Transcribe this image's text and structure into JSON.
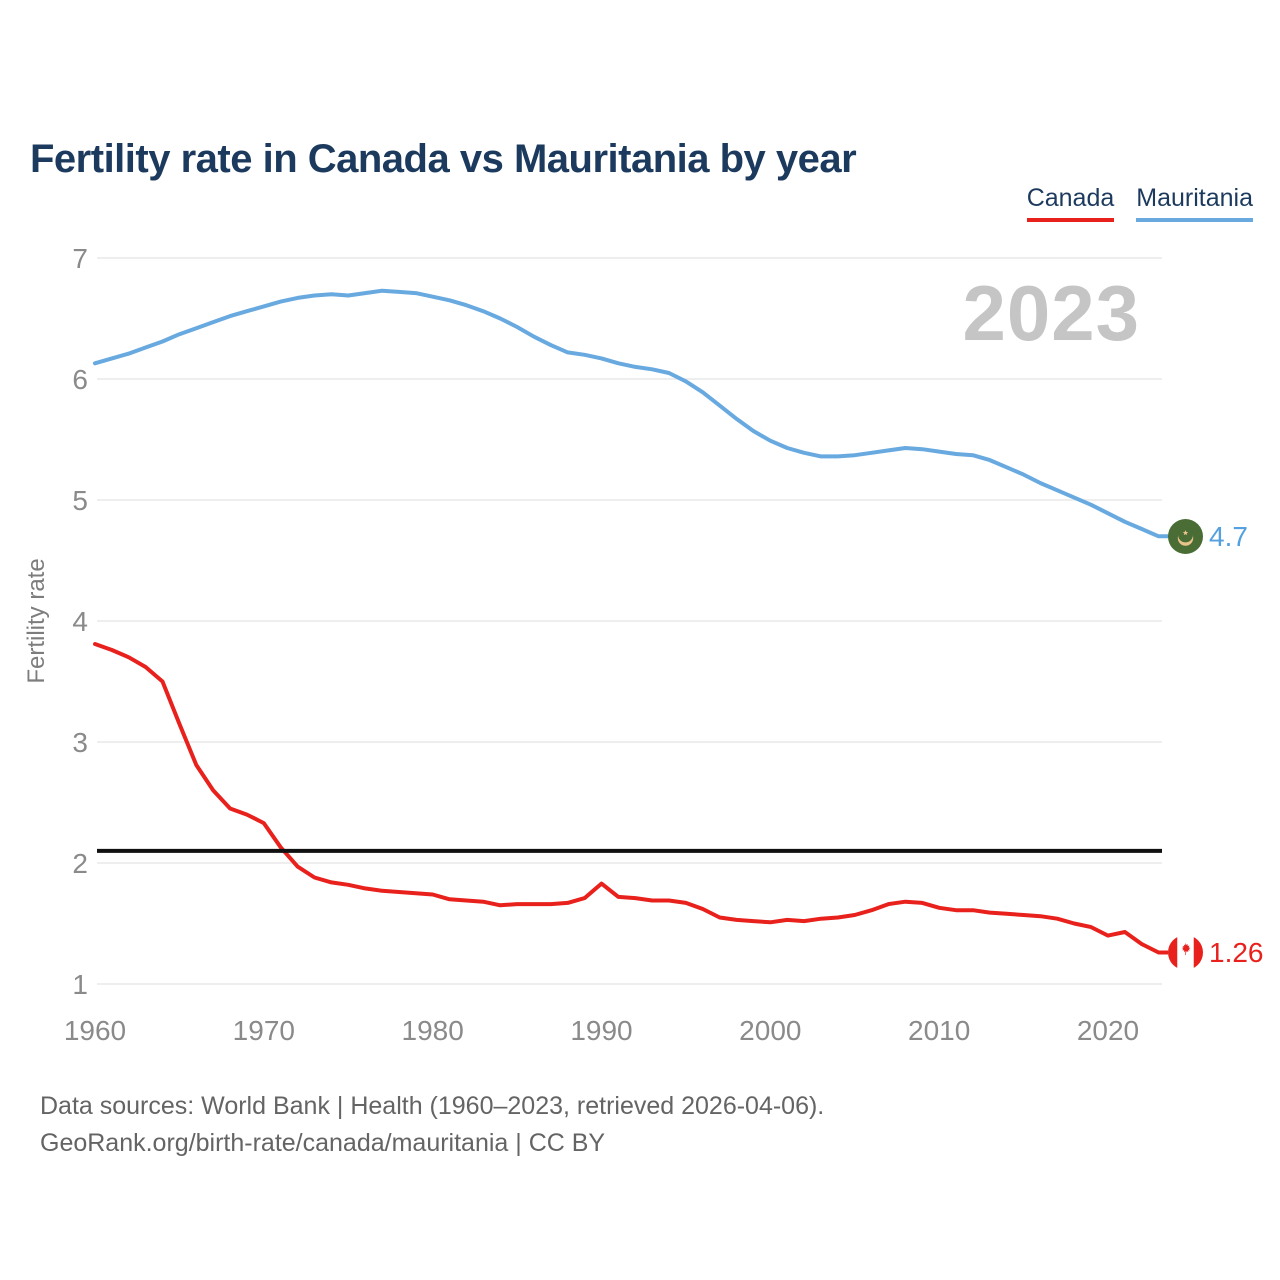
{
  "title": "Fertility rate in Canada vs Mauritania by year",
  "watermark": "2023",
  "legend": {
    "items": [
      {
        "label": "Canada",
        "color": "#e8211d"
      },
      {
        "label": "Mauritania",
        "color": "#68a9e0"
      }
    ]
  },
  "y_axis": {
    "label": "Fertility rate",
    "ticks": [
      1,
      2,
      3,
      4,
      5,
      6,
      7
    ]
  },
  "x_axis": {
    "ticks": [
      1960,
      1970,
      1980,
      1990,
      2000,
      2010,
      2020
    ]
  },
  "end_labels": {
    "mauritania": {
      "value": "4.7",
      "flag": "mauritania-flag"
    },
    "canada": {
      "value": "1.26",
      "flag": "canada-flag"
    }
  },
  "footer": {
    "line1": "Data sources: World Bank | Health (1960–2023, retrieved 2026-04-06).",
    "line2": "GeoRank.org/birth-rate/canada/mauritania | CC BY"
  },
  "chart_data": {
    "type": "line",
    "title": "Fertility rate in Canada vs Mauritania by year",
    "xlabel": "",
    "ylabel": "Fertility rate",
    "x_start": 1960,
    "x_end": 2023,
    "x_step": 1,
    "ylim": [
      1,
      7
    ],
    "xlim": [
      1960,
      2023
    ],
    "grid": "horizontal",
    "legend_position": "top-right",
    "replacement_line": 2.1,
    "colors": {
      "canada": "#e8211d",
      "mauritania": "#68a9e0",
      "reference": "#111111"
    },
    "series": [
      {
        "name": "Canada",
        "color": "#e8211d",
        "end_value": 1.26,
        "values": [
          3.81,
          3.76,
          3.7,
          3.62,
          3.5,
          3.15,
          2.81,
          2.6,
          2.45,
          2.4,
          2.33,
          2.13,
          1.97,
          1.88,
          1.84,
          1.82,
          1.79,
          1.77,
          1.76,
          1.75,
          1.74,
          1.7,
          1.69,
          1.68,
          1.65,
          1.66,
          1.66,
          1.66,
          1.67,
          1.71,
          1.83,
          1.72,
          1.71,
          1.69,
          1.69,
          1.67,
          1.62,
          1.55,
          1.53,
          1.52,
          1.51,
          1.53,
          1.52,
          1.54,
          1.55,
          1.57,
          1.61,
          1.66,
          1.68,
          1.67,
          1.63,
          1.61,
          1.61,
          1.59,
          1.58,
          1.57,
          1.56,
          1.54,
          1.5,
          1.47,
          1.4,
          1.43,
          1.33,
          1.26
        ]
      },
      {
        "name": "Mauritania",
        "color": "#68a9e0",
        "end_value": 4.7,
        "values": [
          6.13,
          6.17,
          6.21,
          6.26,
          6.31,
          6.37,
          6.42,
          6.47,
          6.52,
          6.56,
          6.6,
          6.64,
          6.67,
          6.69,
          6.7,
          6.69,
          6.71,
          6.73,
          6.72,
          6.71,
          6.68,
          6.65,
          6.61,
          6.56,
          6.5,
          6.43,
          6.35,
          6.28,
          6.22,
          6.2,
          6.17,
          6.13,
          6.1,
          6.08,
          6.05,
          5.98,
          5.89,
          5.78,
          5.67,
          5.57,
          5.49,
          5.43,
          5.39,
          5.36,
          5.36,
          5.37,
          5.39,
          5.41,
          5.43,
          5.42,
          5.4,
          5.38,
          5.37,
          5.33,
          5.27,
          5.21,
          5.14,
          5.08,
          5.02,
          4.96,
          4.89,
          4.82,
          4.76,
          4.7
        ]
      }
    ]
  }
}
